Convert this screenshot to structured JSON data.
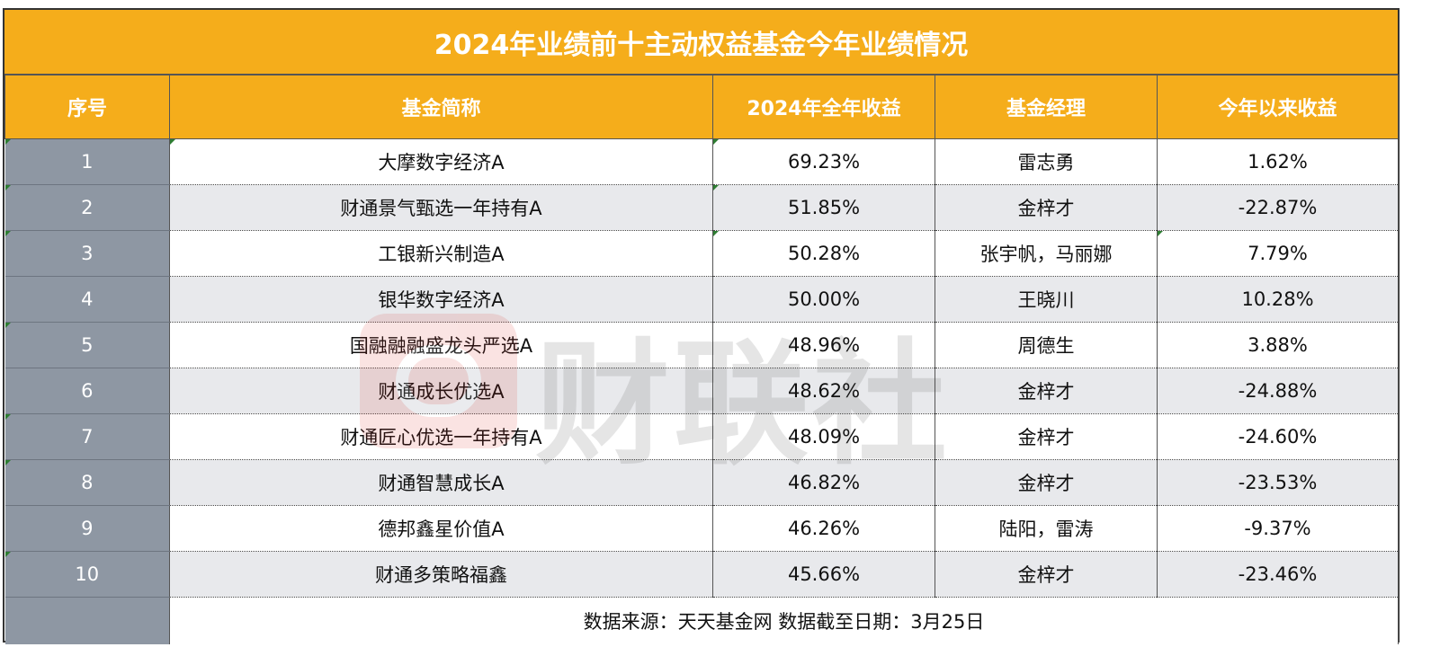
{
  "title": "2024年业绩前十主动权益基金今年业绩情况",
  "columns": [
    "序号",
    "基金简称",
    "2024年全年收益",
    "基金经理",
    "今年以来收益"
  ],
  "rows": [
    {
      "idx": "1",
      "name": "大摩数字经济A",
      "ret2024": "69.23%",
      "manager": "雷志勇",
      "ytd": "1.62%"
    },
    {
      "idx": "2",
      "name": "财通景气甄选一年持有A",
      "ret2024": "51.85%",
      "manager": "金梓才",
      "ytd": "-22.87%"
    },
    {
      "idx": "3",
      "name": "工银新兴制造A",
      "ret2024": "50.28%",
      "manager": "张宇帆，马丽娜",
      "ytd": "7.79%"
    },
    {
      "idx": "4",
      "name": "银华数字经济A",
      "ret2024": "50.00%",
      "manager": "王晓川",
      "ytd": "10.28%"
    },
    {
      "idx": "5",
      "name": "国融融融盛龙头严选A",
      "ret2024": "48.96%",
      "manager": "周德生",
      "ytd": "3.88%"
    },
    {
      "idx": "6",
      "name": "财通成长优选A",
      "ret2024": "48.62%",
      "manager": "金梓才",
      "ytd": "-24.88%"
    },
    {
      "idx": "7",
      "name": "财通匠心优选一年持有A",
      "ret2024": "48.09%",
      "manager": "金梓才",
      "ytd": "-24.60%"
    },
    {
      "idx": "8",
      "name": "财通智慧成长A",
      "ret2024": "46.82%",
      "manager": "金梓才",
      "ytd": "-23.53%"
    },
    {
      "idx": "9",
      "name": "德邦鑫星价值A",
      "ret2024": "46.26%",
      "manager": "陆阳，雷涛",
      "ytd": "-9.37%"
    },
    {
      "idx": "10",
      "name": "财通多策略福鑫",
      "ret2024": "45.66%",
      "manager": "金梓才",
      "ytd": "-23.46%"
    }
  ],
  "footer": "数据来源：天天基金网  数据截至日期：3月25日",
  "watermark": "财联社",
  "colors": {
    "header": "#f5ad1b",
    "index_column": "#8e97a3",
    "alt_row": "#e8e9ec"
  }
}
